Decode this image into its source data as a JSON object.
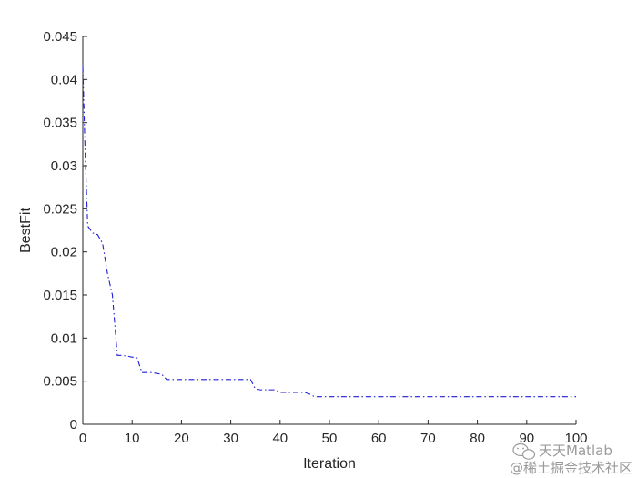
{
  "chart_data": {
    "type": "line",
    "title": "",
    "xlabel": "Iteration",
    "ylabel": "BestFit",
    "xlim": [
      0,
      100
    ],
    "ylim": [
      0,
      0.045
    ],
    "xticks": [
      0,
      10,
      20,
      30,
      40,
      50,
      60,
      70,
      80,
      90,
      100
    ],
    "yticks": [
      0,
      0.005,
      0.01,
      0.015,
      0.02,
      0.025,
      0.03,
      0.035,
      0.04,
      0.045
    ],
    "ytick_labels": [
      "0",
      "0.005",
      "0.01",
      "0.015",
      "0.02",
      "0.025",
      "0.03",
      "0.035",
      "0.04",
      "0.045"
    ],
    "grid": false,
    "legend": "none",
    "series": [
      {
        "color": "#1f1fd6",
        "line_style": "dash-dot",
        "x": [
          0,
          0.5,
          1,
          2,
          3,
          4,
          5,
          6,
          7,
          8,
          9,
          10,
          11,
          12,
          13,
          14,
          15,
          16,
          17,
          20,
          25,
          30,
          34,
          35,
          36,
          39,
          40,
          45,
          46,
          47,
          50,
          60,
          70,
          80,
          90,
          100
        ],
        "y": [
          0.0415,
          0.031,
          0.023,
          0.0222,
          0.022,
          0.021,
          0.0175,
          0.015,
          0.008,
          0.008,
          0.0079,
          0.0078,
          0.0077,
          0.006,
          0.006,
          0.006,
          0.0059,
          0.0058,
          0.0052,
          0.0052,
          0.0052,
          0.0052,
          0.0052,
          0.0041,
          0.004,
          0.004,
          0.0037,
          0.0037,
          0.0035,
          0.0032,
          0.0032,
          0.0032,
          0.0032,
          0.0032,
          0.0032,
          0.0032
        ]
      }
    ]
  },
  "watermark": {
    "line1": "天天Matlab",
    "line2": "@稀土掘金技术社区"
  }
}
